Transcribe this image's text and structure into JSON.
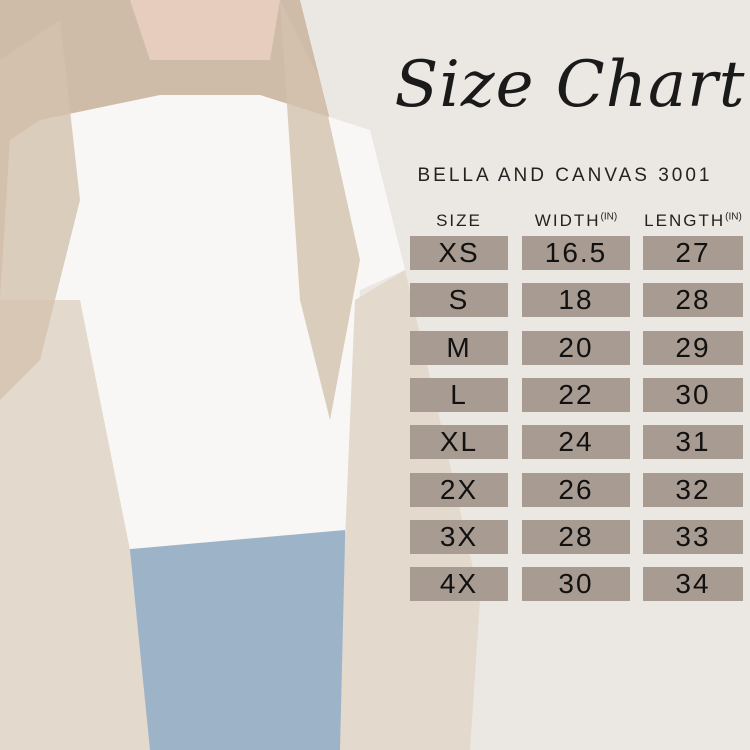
{
  "title": "Size Chart",
  "subtitle": "BELLA AND CANVAS 3001",
  "headers": [
    {
      "label": "SIZE",
      "unit": ""
    },
    {
      "label": "WIDTH",
      "unit": "(IN)"
    },
    {
      "label": "LENGTH",
      "unit": "(IN)"
    }
  ],
  "rows": [
    [
      "XS",
      "16.5",
      "27"
    ],
    [
      "S",
      "18",
      "28"
    ],
    [
      "M",
      "20",
      "29"
    ],
    [
      "L",
      "22",
      "30"
    ],
    [
      "XL",
      "24",
      "31"
    ],
    [
      "2X",
      "26",
      "32"
    ],
    [
      "3X",
      "28",
      "33"
    ],
    [
      "4X",
      "30",
      "34"
    ]
  ],
  "colors": {
    "cell": "#a89b91",
    "background": "#ebe8e4"
  }
}
